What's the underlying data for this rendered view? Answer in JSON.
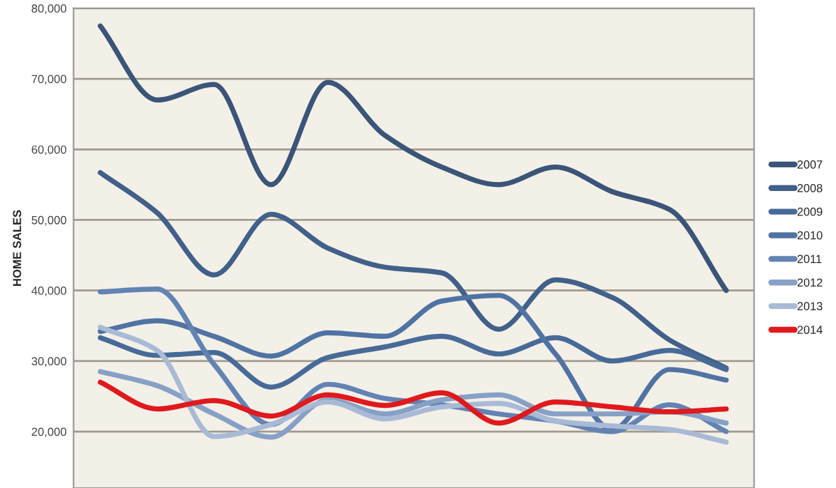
{
  "chart_data": {
    "type": "line",
    "ylabel": "HOME SALES",
    "categories": [
      null,
      null,
      null,
      null,
      null,
      null,
      null,
      null,
      null,
      null,
      null,
      null
    ],
    "ylim": [
      12000,
      80000
    ],
    "yticks": [
      {
        "value": 20000,
        "label": "20,000"
      },
      {
        "value": 30000,
        "label": "30,000"
      },
      {
        "value": 40000,
        "label": "40,000"
      },
      {
        "value": 50000,
        "label": "50,000"
      },
      {
        "value": 60000,
        "label": "60,000"
      },
      {
        "value": 70000,
        "label": "70,000"
      },
      {
        "value": 80000,
        "label": "80,000"
      }
    ],
    "grid": "y",
    "legend": "right",
    "marker": "none",
    "line_style": "solid",
    "series": [
      {
        "name": "2007",
        "color": "#3b5578",
        "values": [
          77500,
          67000,
          69200,
          55000,
          69500,
          62000,
          57500,
          55000,
          57500,
          54000,
          51500,
          40000
        ]
      },
      {
        "name": "2008",
        "color": "#41608a",
        "values": [
          56700,
          51000,
          42200,
          50800,
          46000,
          43300,
          42500,
          34500,
          41500,
          39000,
          33000,
          29000
        ]
      },
      {
        "name": "2009",
        "color": "#486a98",
        "values": [
          33300,
          30800,
          31200,
          26300,
          30500,
          32000,
          33500,
          31000,
          33300,
          30000,
          31500,
          28800
        ]
      },
      {
        "name": "2010",
        "color": "#5073a4",
        "values": [
          34200,
          35700,
          33500,
          30700,
          34000,
          33500,
          38500,
          39300,
          31000,
          20300,
          28800,
          27300
        ]
      },
      {
        "name": "2011",
        "color": "#6283b3",
        "values": [
          39800,
          40200,
          29500,
          21000,
          26700,
          24700,
          23800,
          22500,
          21500,
          20000,
          23800,
          20000
        ]
      },
      {
        "name": "2012",
        "color": "#87a0c6",
        "values": [
          28500,
          26500,
          22500,
          19200,
          24500,
          22500,
          24500,
          25200,
          22500,
          22500,
          22800,
          21200
        ]
      },
      {
        "name": "2013",
        "color": "#a9bad6",
        "values": [
          34800,
          31500,
          19300,
          21000,
          24200,
          21800,
          23500,
          24000,
          21500,
          20800,
          20300,
          18500
        ]
      },
      {
        "name": "2014",
        "color": "#e0191c",
        "values": [
          27000,
          23200,
          24400,
          22200,
          25200,
          23700,
          25500,
          21200,
          24200,
          23500,
          22800,
          23200
        ]
      }
    ]
  }
}
